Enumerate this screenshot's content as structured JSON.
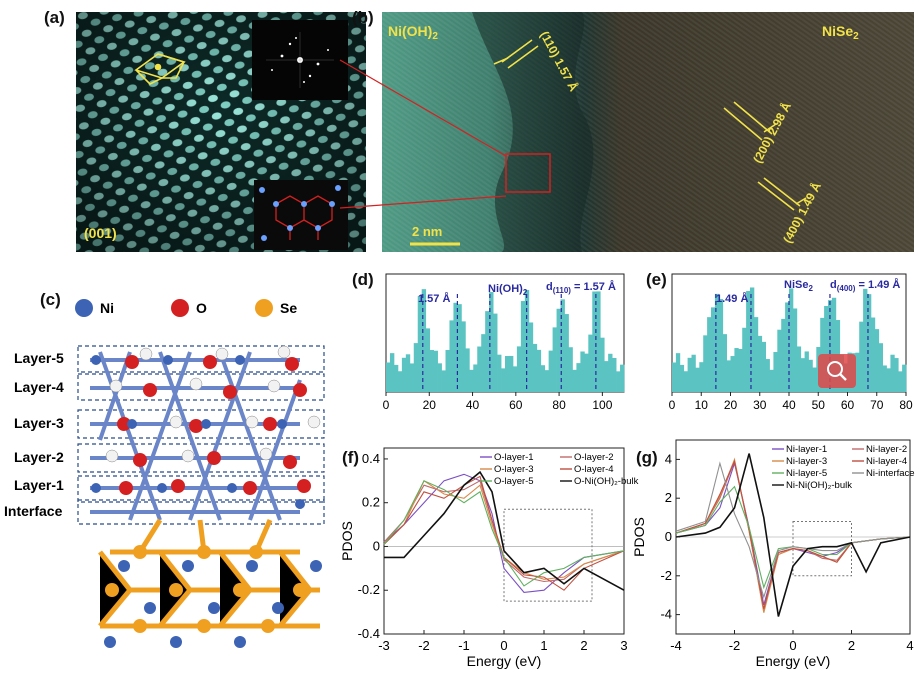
{
  "panel_labels": {
    "a": "(a)",
    "b": "(b)",
    "c": "(c)",
    "d": "(d)",
    "e": "(e)",
    "f": "(f)",
    "g": "(g)"
  },
  "panel_a": {
    "zone_label": "(001)"
  },
  "panel_b": {
    "left_phase": "Ni(OH)",
    "left_sub": "2",
    "right_phase": "NiSe",
    "right_sub": "2",
    "scale_bar": "2 nm",
    "spacings": [
      {
        "plane": "(110)",
        "d": "1.57 Å"
      },
      {
        "plane": "(200)",
        "d": "2.98 Å"
      },
      {
        "plane": "(400)",
        "d": "1.49 Å"
      }
    ]
  },
  "panel_c": {
    "legend": [
      {
        "label": "Ni",
        "color": "#3d63b4"
      },
      {
        "label": "O",
        "color": "#d42020"
      },
      {
        "label": "Se",
        "color": "#f0a020"
      }
    ],
    "layers": [
      "Layer-5",
      "Layer-4",
      "Layer-3",
      "Layer-2",
      "Layer-1",
      "Interface"
    ]
  },
  "panel_d": {
    "annot_small": "1.57 Å",
    "phase": "Ni(OH)",
    "phase_sub": "2",
    "d_prefix": "d",
    "d_sub": "(110)",
    "d_value": " = 1.57 Å",
    "xticks": [
      0,
      20,
      40,
      60,
      80,
      100
    ],
    "dash_x": [
      17,
      33,
      48,
      65,
      81,
      97
    ],
    "fill": "#5bc4c2"
  },
  "panel_e": {
    "annot_small": "1.49 Å",
    "phase": "NiSe",
    "phase_sub": "2",
    "d_prefix": "d",
    "d_sub": "(400)",
    "d_value": " = 1.49 Å",
    "xticks": [
      0,
      10,
      20,
      30,
      40,
      50,
      60,
      70,
      80
    ],
    "dash_x": [
      15,
      27,
      40,
      54,
      67
    ],
    "fill": "#5bc4c2"
  },
  "panel_f": {
    "ylabel": "PDOS",
    "xlabel": "Energy (eV)",
    "xticks": [
      -3,
      -2,
      -1,
      0,
      1,
      2,
      3
    ],
    "yticks": [
      -0.4,
      -0.2,
      0.0,
      0.2,
      0.4
    ],
    "legend": [
      "O-layer-1",
      "O-layer-2",
      "O-layer-3",
      "O-layer-4",
      "O-layer-5",
      "O-Ni(OH)₂-bulk"
    ],
    "colors": [
      "#7b4fc4",
      "#c06a6a",
      "#d98a4a",
      "#c05040",
      "#60b060",
      "#111111"
    ]
  },
  "panel_g": {
    "ylabel": "PDOS",
    "xlabel": "Energy (eV)",
    "xticks": [
      -4,
      -2,
      0,
      2,
      4
    ],
    "yticks": [
      -4,
      -2,
      0,
      2,
      4
    ],
    "legend": [
      "Ni-layer-1",
      "Ni-layer-2",
      "Ni-layer-3",
      "Ni-layer-4",
      "Ni-layer-5",
      "Ni-interface",
      "Ni-Ni(OH)₂-bulk"
    ],
    "colors": [
      "#7b4fc4",
      "#c06a6a",
      "#d98a4a",
      "#c05040",
      "#60b060",
      "#909090",
      "#111111"
    ]
  },
  "chart_data": [
    {
      "type": "area",
      "panel": "d",
      "xlim": [
        0,
        110
      ],
      "xticks": [
        0,
        20,
        40,
        60,
        80,
        100
      ],
      "annotations": [
        "1.57 Å",
        "Ni(OH)2",
        "d(110) = 1.57 Å"
      ],
      "peak_x": [
        17,
        33,
        48,
        65,
        81,
        97
      ]
    },
    {
      "type": "area",
      "panel": "e",
      "xlim": [
        0,
        80
      ],
      "xticks": [
        0,
        10,
        20,
        30,
        40,
        50,
        60,
        70,
        80
      ],
      "annotations": [
        "1.49 Å",
        "NiSe2",
        "d(400) = 1.49 Å"
      ],
      "peak_x": [
        15,
        27,
        40,
        54,
        67
      ]
    },
    {
      "type": "line",
      "panel": "f",
      "xlabel": "Energy (eV)",
      "ylabel": "PDOS",
      "xlim": [
        -3,
        3
      ],
      "ylim": [
        -0.4,
        0.45
      ],
      "series": [
        {
          "name": "O-layer-1",
          "x": [
            -3,
            -2.5,
            -2,
            -1.5,
            -1,
            -0.6,
            -0.3,
            0,
            0.5,
            1,
            1.5,
            2,
            3
          ],
          "y": [
            0.02,
            0.1,
            0.2,
            0.3,
            0.33,
            0.3,
            0.15,
            -0.1,
            -0.21,
            -0.2,
            -0.12,
            -0.05,
            -0.02
          ]
        },
        {
          "name": "O-layer-2",
          "x": [
            -3,
            -2.5,
            -2,
            -1.5,
            -1,
            -0.6,
            -0.3,
            0,
            0.5,
            1,
            1.5,
            2,
            3
          ],
          "y": [
            0.02,
            0.12,
            0.28,
            0.25,
            0.26,
            0.3,
            0.12,
            -0.06,
            -0.14,
            -0.16,
            -0.15,
            -0.08,
            -0.02
          ]
        },
        {
          "name": "O-layer-3",
          "x": [
            -3,
            -2.5,
            -2,
            -1.5,
            -1,
            -0.6,
            -0.3,
            0,
            0.5,
            1,
            1.5,
            2,
            3
          ],
          "y": [
            0.01,
            0.1,
            0.3,
            0.24,
            0.22,
            0.28,
            0.1,
            -0.05,
            -0.12,
            -0.15,
            -0.14,
            -0.08,
            -0.02
          ]
        },
        {
          "name": "O-layer-4",
          "x": [
            -3,
            -2.5,
            -2,
            -1.5,
            -1,
            -0.6,
            -0.3,
            0,
            0.5,
            1,
            1.5,
            2,
            3
          ],
          "y": [
            0.01,
            0.1,
            0.25,
            0.22,
            0.28,
            0.32,
            0.12,
            -0.05,
            -0.13,
            -0.14,
            -0.2,
            -0.1,
            -0.02
          ]
        },
        {
          "name": "O-layer-5",
          "x": [
            -3,
            -2.5,
            -2,
            -1.5,
            -1,
            -0.6,
            -0.3,
            0,
            0.5,
            1,
            1.5,
            2,
            3
          ],
          "y": [
            0.01,
            0.12,
            0.3,
            0.26,
            0.2,
            0.25,
            0.08,
            -0.05,
            -0.18,
            -0.12,
            -0.1,
            -0.05,
            -0.02
          ]
        },
        {
          "name": "O-Ni(OH)₂-bulk",
          "x": [
            -3,
            -2.5,
            -2,
            -1.5,
            -1,
            -0.6,
            -0.3,
            0,
            0.5,
            1,
            1.5,
            2,
            3
          ],
          "y": [
            -0.05,
            -0.05,
            0.05,
            0.15,
            0.28,
            0.34,
            0.25,
            -0.02,
            -0.12,
            -0.1,
            -0.17,
            -0.1,
            -0.2
          ]
        }
      ]
    },
    {
      "type": "line",
      "panel": "g",
      "xlabel": "Energy (eV)",
      "ylabel": "PDOS",
      "xlim": [
        -4,
        4
      ],
      "ylim": [
        -5,
        5
      ],
      "series": [
        {
          "name": "Ni-layer-1",
          "x": [
            -4,
            -3,
            -2.5,
            -2,
            -1.5,
            -1,
            -0.5,
            0,
            0.5,
            1,
            1.5,
            2,
            3,
            4
          ],
          "y": [
            0.2,
            0.6,
            1.5,
            3.8,
            0.5,
            -3.5,
            -0.8,
            -0.6,
            -0.8,
            -1.0,
            -0.8,
            -0.3,
            -0.1,
            0
          ]
        },
        {
          "name": "Ni-layer-2",
          "x": [
            -4,
            -3,
            -2.5,
            -2,
            -1.5,
            -1,
            -0.5,
            0,
            0.5,
            1,
            1.5,
            2,
            3,
            4
          ],
          "y": [
            0.2,
            0.7,
            2.0,
            3.9,
            0.3,
            -3.8,
            -0.9,
            -0.6,
            -0.7,
            -1.1,
            -1.2,
            -0.3,
            -0.1,
            0
          ]
        },
        {
          "name": "Ni-layer-3",
          "x": [
            -4,
            -3,
            -2.5,
            -2,
            -1.5,
            -1,
            -0.5,
            0,
            0.5,
            1,
            1.5,
            2,
            3,
            4
          ],
          "y": [
            0.2,
            0.7,
            2.1,
            4.0,
            0.3,
            -3.9,
            -0.9,
            -0.6,
            -0.7,
            -1.0,
            -1.3,
            -0.3,
            -0.1,
            0
          ]
        },
        {
          "name": "Ni-layer-4",
          "x": [
            -4,
            -3,
            -2.5,
            -2,
            -1.5,
            -1,
            -0.5,
            0,
            0.5,
            1,
            1.5,
            2,
            3,
            4
          ],
          "y": [
            0.2,
            0.7,
            2.2,
            3.9,
            0.4,
            -3.7,
            -0.8,
            -0.6,
            -0.7,
            -1.0,
            -1.3,
            -0.3,
            -0.1,
            0
          ]
        },
        {
          "name": "Ni-layer-5",
          "x": [
            -4,
            -3,
            -2.5,
            -2,
            -1.5,
            -1,
            -0.5,
            0,
            0.5,
            1,
            1.5,
            2,
            3,
            4
          ],
          "y": [
            0.2,
            0.6,
            1.8,
            2.6,
            0.5,
            -2.6,
            -0.6,
            -0.5,
            -0.6,
            -0.9,
            -0.9,
            -0.3,
            -0.1,
            0
          ]
        },
        {
          "name": "Ni-interface",
          "x": [
            -4,
            -3,
            -2.5,
            -2,
            -1.5,
            -1,
            -0.5,
            0,
            0.5,
            1,
            1.5,
            2,
            3,
            4
          ],
          "y": [
            0.3,
            0.8,
            3.8,
            1.2,
            -0.5,
            -3.1,
            -0.7,
            -0.5,
            -0.6,
            -0.7,
            -0.7,
            -0.3,
            -0.1,
            0
          ]
        },
        {
          "name": "Ni-Ni(OH)₂-bulk",
          "x": [
            -4,
            -3,
            -2.5,
            -2,
            -1.5,
            -1,
            -0.5,
            0,
            0.5,
            1,
            1.5,
            2,
            2.5,
            3,
            4
          ],
          "y": [
            0,
            0.2,
            0.5,
            1.5,
            4.3,
            1.0,
            -4.1,
            -1.5,
            -0.6,
            -0.5,
            -0.5,
            -0.3,
            -1.8,
            -0.3,
            0
          ]
        }
      ]
    }
  ]
}
